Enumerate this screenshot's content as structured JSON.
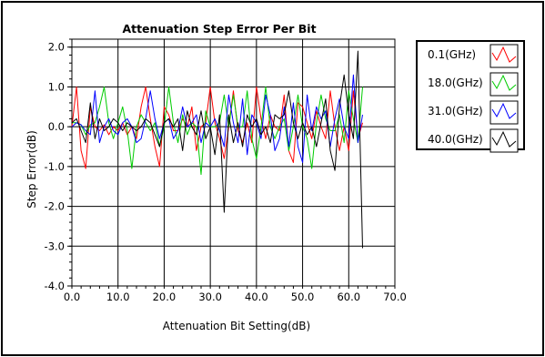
{
  "chart_data": {
    "type": "line",
    "title": "Attenuation Step Error Per Bit",
    "xlabel": "Attenuation Bit Setting(dB)",
    "ylabel": "Step Error(dB)",
    "xlim": [
      0,
      70
    ],
    "ylim": [
      -4,
      2.2
    ],
    "x_ticks": [
      "0.0",
      "10.0",
      "20.0",
      "30.0",
      "40.0",
      "50.0",
      "60.0",
      "70.0"
    ],
    "y_ticks": [
      "-4.0",
      "-3.0",
      "-2.0",
      "-1.0",
      "0.0",
      "1.0",
      "2.0"
    ],
    "grid": true,
    "legend_position": "top-right",
    "series": [
      {
        "name": "0.1(GHz)",
        "color": "#ff0000",
        "points": [
          [
            0,
            0
          ],
          [
            1,
            1
          ],
          [
            2,
            -0.6
          ],
          [
            3,
            -1.05
          ],
          [
            4,
            0.5
          ],
          [
            5,
            0
          ],
          [
            6,
            -0.1
          ],
          [
            7,
            0.05
          ],
          [
            8,
            -0.2
          ],
          [
            9,
            0
          ],
          [
            10,
            -0.1
          ],
          [
            11,
            0.1
          ],
          [
            12,
            -0.2
          ],
          [
            13,
            0
          ],
          [
            14,
            -0.3
          ],
          [
            15,
            0.5
          ],
          [
            16,
            1
          ],
          [
            17,
            0.2
          ],
          [
            18,
            -0.5
          ],
          [
            19,
            -1
          ],
          [
            20,
            0.5
          ],
          [
            21,
            0.3
          ],
          [
            22,
            -0.1
          ],
          [
            23,
            -0.1
          ],
          [
            24,
            0.2
          ],
          [
            25,
            0
          ],
          [
            26,
            0.5
          ],
          [
            27,
            -0.6
          ],
          [
            28,
            0
          ],
          [
            29,
            0.1
          ],
          [
            30,
            1
          ],
          [
            31,
            0.1
          ],
          [
            32,
            -0.3
          ],
          [
            33,
            -0.8
          ],
          [
            34,
            0
          ],
          [
            35,
            0.9
          ],
          [
            36,
            -0.1
          ],
          [
            37,
            -0.4
          ],
          [
            38,
            0.1
          ],
          [
            39,
            -0.4
          ],
          [
            40,
            1
          ],
          [
            41,
            0.2
          ],
          [
            42,
            -0.3
          ],
          [
            43,
            0.3
          ],
          [
            44,
            0
          ],
          [
            45,
            -0.1
          ],
          [
            46,
            0.8
          ],
          [
            47,
            -0.6
          ],
          [
            48,
            -0.9
          ],
          [
            49,
            0.6
          ],
          [
            50,
            0.5
          ],
          [
            51,
            0.1
          ],
          [
            52,
            -0.3
          ],
          [
            53,
            0.4
          ],
          [
            54,
            0
          ],
          [
            55,
            -0.3
          ],
          [
            56,
            0.9
          ],
          [
            57,
            0
          ],
          [
            58,
            -0.6
          ],
          [
            59,
            0
          ],
          [
            60,
            -0.6
          ],
          [
            61,
            0.9
          ],
          [
            62,
            -0.3
          ],
          [
            63,
            0.1
          ]
        ]
      },
      {
        "name": "18.0(GHz)",
        "color": "#00cc00",
        "points": [
          [
            0,
            0.1
          ],
          [
            1,
            0.1
          ],
          [
            2,
            0.05
          ],
          [
            3,
            -0.2
          ],
          [
            4,
            0.05
          ],
          [
            5,
            0.1
          ],
          [
            6,
            0.5
          ],
          [
            7,
            1
          ],
          [
            8,
            0.1
          ],
          [
            9,
            -0.3
          ],
          [
            10,
            0.1
          ],
          [
            11,
            0.5
          ],
          [
            12,
            -0.1
          ],
          [
            13,
            -1.05
          ],
          [
            14,
            0
          ],
          [
            15,
            0.3
          ],
          [
            16,
            0.1
          ],
          [
            17,
            -0.1
          ],
          [
            18,
            0.1
          ],
          [
            19,
            -0.5
          ],
          [
            20,
            0
          ],
          [
            21,
            1
          ],
          [
            22,
            0.1
          ],
          [
            23,
            -0.4
          ],
          [
            24,
            0.3
          ],
          [
            25,
            -0.2
          ],
          [
            26,
            0.1
          ],
          [
            27,
            0
          ],
          [
            28,
            -1.2
          ],
          [
            29,
            0.4
          ],
          [
            30,
            0
          ],
          [
            31,
            0
          ],
          [
            32,
            0.1
          ],
          [
            33,
            0.8
          ],
          [
            34,
            0
          ],
          [
            35,
            0.8
          ],
          [
            36,
            0
          ],
          [
            37,
            0
          ],
          [
            38,
            0.9
          ],
          [
            39,
            -0.3
          ],
          [
            40,
            -0.8
          ],
          [
            41,
            0
          ],
          [
            42,
            1
          ],
          [
            43,
            0
          ],
          [
            44,
            -0.3
          ],
          [
            45,
            0
          ],
          [
            46,
            0.2
          ],
          [
            47,
            -0.6
          ],
          [
            48,
            0
          ],
          [
            49,
            0.8
          ],
          [
            50,
            0
          ],
          [
            51,
            -0.3
          ],
          [
            52,
            -1.05
          ],
          [
            53,
            0.1
          ],
          [
            54,
            0.8
          ],
          [
            55,
            0.2
          ],
          [
            56,
            -0.1
          ],
          [
            57,
            -0.1
          ],
          [
            58,
            0.3
          ],
          [
            59,
            -0.4
          ],
          [
            60,
            0.9
          ],
          [
            61,
            0.2
          ],
          [
            62,
            -0.4
          ],
          [
            63,
            1
          ]
        ]
      },
      {
        "name": "31.0(GHz)",
        "color": "#0000ff",
        "points": [
          [
            0,
            0
          ],
          [
            1,
            0.1
          ],
          [
            2,
            0.05
          ],
          [
            3,
            -0.1
          ],
          [
            4,
            -0.2
          ],
          [
            5,
            0.9
          ],
          [
            6,
            -0.4
          ],
          [
            7,
            0
          ],
          [
            8,
            0.2
          ],
          [
            9,
            -0.1
          ],
          [
            10,
            -0.2
          ],
          [
            11,
            0.1
          ],
          [
            12,
            0.2
          ],
          [
            13,
            0
          ],
          [
            14,
            -0.4
          ],
          [
            15,
            -0.3
          ],
          [
            16,
            0.2
          ],
          [
            17,
            0.9
          ],
          [
            18,
            0.2
          ],
          [
            19,
            -0.3
          ],
          [
            20,
            0.1
          ],
          [
            21,
            0.2
          ],
          [
            22,
            -0.3
          ],
          [
            23,
            -0.1
          ],
          [
            24,
            0.5
          ],
          [
            25,
            0
          ],
          [
            26,
            0.1
          ],
          [
            27,
            0.3
          ],
          [
            28,
            -0.4
          ],
          [
            29,
            0.1
          ],
          [
            30,
            0
          ],
          [
            31,
            0.2
          ],
          [
            32,
            -0.1
          ],
          [
            33,
            -0.5
          ],
          [
            34,
            0.8
          ],
          [
            35,
            0.1
          ],
          [
            36,
            -0.4
          ],
          [
            37,
            0.7
          ],
          [
            38,
            -0.7
          ],
          [
            39,
            0.3
          ],
          [
            40,
            0.1
          ],
          [
            41,
            -0.3
          ],
          [
            42,
            0.8
          ],
          [
            43,
            0.3
          ],
          [
            44,
            -0.6
          ],
          [
            45,
            -0.3
          ],
          [
            46,
            0.5
          ],
          [
            47,
            -0.5
          ],
          [
            48,
            0.6
          ],
          [
            49,
            -0.5
          ],
          [
            50,
            -0.9
          ],
          [
            51,
            0.8
          ],
          [
            52,
            -0.1
          ],
          [
            53,
            0.5
          ],
          [
            54,
            0.2
          ],
          [
            55,
            0.4
          ],
          [
            56,
            -0.5
          ],
          [
            57,
            0.2
          ],
          [
            58,
            0.7
          ],
          [
            59,
            0
          ],
          [
            60,
            -0.3
          ],
          [
            61,
            1.3
          ],
          [
            62,
            -0.4
          ],
          [
            63,
            0.3
          ]
        ]
      },
      {
        "name": "40.0(GHz)",
        "color": "#000000",
        "points": [
          [
            0,
            0.1
          ],
          [
            1,
            0.2
          ],
          [
            2,
            -0.1
          ],
          [
            3,
            -0.4
          ],
          [
            4,
            0.6
          ],
          [
            5,
            -0.3
          ],
          [
            6,
            0.2
          ],
          [
            7,
            -0.1
          ],
          [
            8,
            0
          ],
          [
            9,
            0.2
          ],
          [
            10,
            0.1
          ],
          [
            11,
            -0.1
          ],
          [
            12,
            0.1
          ],
          [
            13,
            0
          ],
          [
            14,
            -0.1
          ],
          [
            15,
            0
          ],
          [
            16,
            0.2
          ],
          [
            17,
            0.1
          ],
          [
            18,
            -0.2
          ],
          [
            19,
            -0.5
          ],
          [
            20,
            0.1
          ],
          [
            21,
            0.2
          ],
          [
            22,
            0
          ],
          [
            23,
            0.2
          ],
          [
            24,
            -0.6
          ],
          [
            25,
            0.4
          ],
          [
            26,
            0
          ],
          [
            27,
            -0.2
          ],
          [
            28,
            0.4
          ],
          [
            29,
            -0.3
          ],
          [
            30,
            0
          ],
          [
            31,
            -0.7
          ],
          [
            32,
            0.3
          ],
          [
            33,
            -2.15
          ],
          [
            34,
            0.3
          ],
          [
            35,
            -0.4
          ],
          [
            36,
            0.1
          ],
          [
            37,
            -0.5
          ],
          [
            38,
            0.3
          ],
          [
            39,
            0
          ],
          [
            40,
            0.2
          ],
          [
            41,
            -0.2
          ],
          [
            42,
            0
          ],
          [
            43,
            -0.4
          ],
          [
            44,
            0.3
          ],
          [
            45,
            0.2
          ],
          [
            46,
            0.3
          ],
          [
            47,
            0.9
          ],
          [
            48,
            0.1
          ],
          [
            49,
            -0.3
          ],
          [
            50,
            0.1
          ],
          [
            51,
            -0.2
          ],
          [
            52,
            0
          ],
          [
            53,
            -0.5
          ],
          [
            54,
            0.1
          ],
          [
            55,
            0.7
          ],
          [
            56,
            -0.6
          ],
          [
            57,
            -1.1
          ],
          [
            58,
            0.5
          ],
          [
            59,
            1.3
          ],
          [
            60,
            0.3
          ],
          [
            61,
            -0.3
          ],
          [
            62,
            1.9
          ],
          [
            63,
            -3.05
          ]
        ]
      }
    ]
  }
}
